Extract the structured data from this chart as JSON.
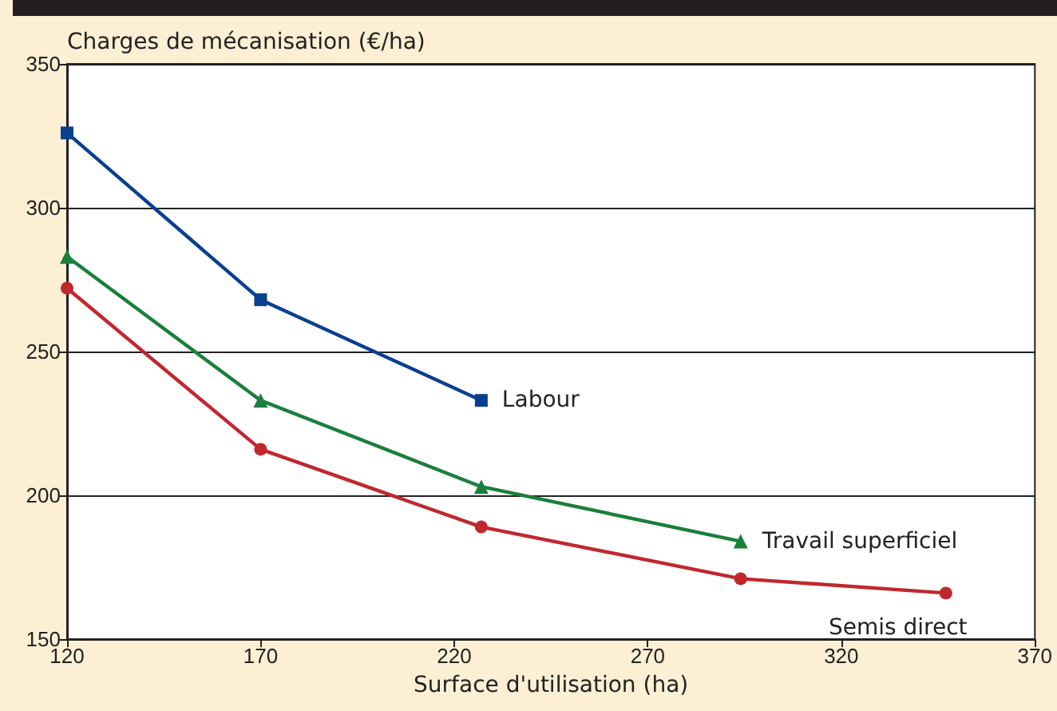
{
  "chart_data": {
    "type": "line",
    "ylabel": "Charges de mécanisation (€/ha)",
    "xlabel": "Surface d'utilisation (ha)",
    "xlim": [
      120,
      370
    ],
    "xticks": [
      120,
      170,
      220,
      270,
      320,
      370
    ],
    "ylim": [
      150,
      350
    ],
    "yticks": [
      150,
      200,
      250,
      300,
      350
    ],
    "grid": "y",
    "legend": false,
    "series": [
      {
        "name": "Labour",
        "color": "#0a3f8f",
        "marker": "square",
        "x": [
          120,
          170,
          227
        ],
        "values": [
          326,
          268,
          233
        ]
      },
      {
        "name": "Travail superficiel",
        "color": "#1a7f3a",
        "marker": "triangle",
        "x": [
          120,
          170,
          227,
          294
        ],
        "values": [
          283,
          233,
          203,
          184
        ]
      },
      {
        "name": "Semis direct",
        "color": "#c0282d",
        "marker": "circle",
        "x": [
          120,
          170,
          227,
          294,
          347
        ],
        "values": [
          272,
          216,
          189,
          171,
          166
        ]
      }
    ]
  }
}
